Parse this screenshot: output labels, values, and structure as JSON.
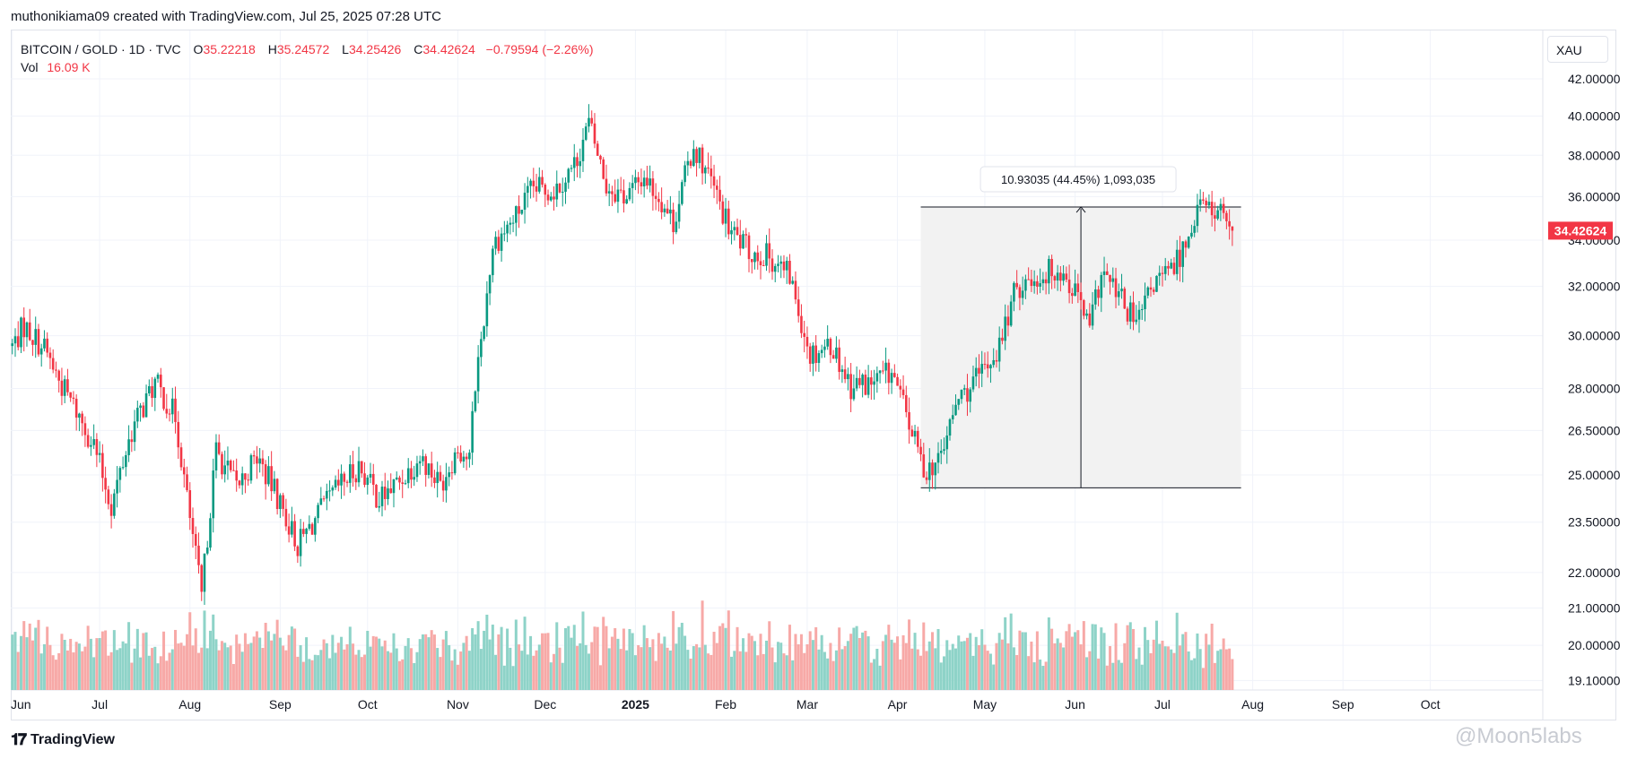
{
  "header": {
    "attribution": "muthonikiama09 created with TradingView.com, Jul 25, 2025 07:28 UTC"
  },
  "legend": {
    "symbol": "BITCOIN / GOLD · 1D · TVC",
    "open_label": "O",
    "open": "35.22218",
    "high_label": "H",
    "high": "35.24572",
    "low_label": "L",
    "low": "34.25426",
    "close_label": "C",
    "close": "34.42624",
    "change": "−0.79594 (−2.26%)",
    "vol_label": "Vol",
    "vol": "16.09 K"
  },
  "currency_button": "XAU",
  "measure_label": "10.93035 (44.45%) 1,093,035",
  "last_price_tag": "34.42624",
  "footer": {
    "brand": "TradingView",
    "watermark": "@Moon5labs"
  },
  "colors": {
    "up": "#089981",
    "down": "#f23645",
    "vol_up": "#8ed3c8",
    "vol_down": "#f7a9a7",
    "grid": "#f0f3fa",
    "range_fill": "#f2f2f2"
  },
  "chart_data": {
    "type": "candlestick",
    "symbol": "BITCOIN / GOLD",
    "interval": "1D",
    "y_scale": "log",
    "ylim": [
      19.1,
      42.0
    ],
    "y_ticks": [
      "42.00000",
      "40.00000",
      "38.00000",
      "36.00000",
      "34.00000",
      "32.00000",
      "30.00000",
      "28.00000",
      "26.50000",
      "25.00000",
      "23.50000",
      "22.00000",
      "21.00000",
      "20.00000",
      "19.10000"
    ],
    "x_ticks": [
      "Jun",
      "Jul",
      "Aug",
      "Sep",
      "Oct",
      "Nov",
      "Dec",
      "2025",
      "Feb",
      "Mar",
      "Apr",
      "May",
      "Jun",
      "Jul",
      "Aug",
      "Sep",
      "Oct"
    ],
    "x_range": [
      "2024-06-01",
      "2025-10-31"
    ],
    "price_path": [
      [
        "2024-06-01",
        29.6
      ],
      [
        "2024-06-05",
        30.4
      ],
      [
        "2024-06-12",
        29.5
      ],
      [
        "2024-06-18",
        28.1
      ],
      [
        "2024-06-24",
        27.0
      ],
      [
        "2024-06-29",
        26.0
      ],
      [
        "2024-07-05",
        24.0
      ],
      [
        "2024-07-12",
        26.5
      ],
      [
        "2024-07-20",
        28.2
      ],
      [
        "2024-07-27",
        27.0
      ],
      [
        "2024-07-31",
        24.2
      ],
      [
        "2024-08-05",
        21.3
      ],
      [
        "2024-08-10",
        25.8
      ],
      [
        "2024-08-17",
        24.6
      ],
      [
        "2024-08-24",
        25.6
      ],
      [
        "2024-08-31",
        24.3
      ],
      [
        "2024-09-07",
        22.8
      ],
      [
        "2024-09-14",
        23.7
      ],
      [
        "2024-09-21",
        24.6
      ],
      [
        "2024-09-28",
        25.3
      ],
      [
        "2024-10-05",
        24.2
      ],
      [
        "2024-10-12",
        24.8
      ],
      [
        "2024-10-19",
        25.6
      ],
      [
        "2024-10-26",
        24.7
      ],
      [
        "2024-11-01",
        25.9
      ],
      [
        "2024-11-05",
        25.5
      ],
      [
        "2024-11-07",
        28.2
      ],
      [
        "2024-11-10",
        30.7
      ],
      [
        "2024-11-13",
        33.8
      ],
      [
        "2024-11-20",
        34.9
      ],
      [
        "2024-11-27",
        36.4
      ],
      [
        "2024-12-04",
        36.3
      ],
      [
        "2024-12-11",
        37.5
      ],
      [
        "2024-12-16",
        39.6
      ],
      [
        "2024-12-22",
        36.5
      ],
      [
        "2024-12-29",
        36.0
      ],
      [
        "2025-01-04",
        37.0
      ],
      [
        "2025-01-10",
        35.8
      ],
      [
        "2025-01-14",
        34.8
      ],
      [
        "2025-01-21",
        38.5
      ],
      [
        "2025-01-27",
        36.7
      ],
      [
        "2025-02-02",
        34.5
      ],
      [
        "2025-02-09",
        33.5
      ],
      [
        "2025-02-16",
        33.3
      ],
      [
        "2025-02-23",
        32.4
      ],
      [
        "2025-03-02",
        29.3
      ],
      [
        "2025-03-09",
        29.7
      ],
      [
        "2025-03-16",
        28.1
      ],
      [
        "2025-03-23",
        28.2
      ],
      [
        "2025-03-30",
        28.6
      ],
      [
        "2025-04-06",
        26.4
      ],
      [
        "2025-04-10",
        25.2
      ],
      [
        "2025-04-15",
        25.4
      ],
      [
        "2025-04-22",
        27.6
      ],
      [
        "2025-04-29",
        28.4
      ],
      [
        "2025-05-06",
        29.6
      ],
      [
        "2025-05-12",
        32.0
      ],
      [
        "2025-05-19",
        32.4
      ],
      [
        "2025-05-26",
        32.8
      ],
      [
        "2025-06-02",
        31.6
      ],
      [
        "2025-06-06",
        30.2
      ],
      [
        "2025-06-10",
        32.6
      ],
      [
        "2025-06-16",
        31.6
      ],
      [
        "2025-06-22",
        30.4
      ],
      [
        "2025-06-28",
        32.1
      ],
      [
        "2025-07-04",
        32.6
      ],
      [
        "2025-07-10",
        34.2
      ],
      [
        "2025-07-13",
        35.6
      ],
      [
        "2025-07-18",
        35.4
      ],
      [
        "2025-07-22",
        35.2
      ],
      [
        "2025-07-25",
        34.43
      ]
    ],
    "volume_peak_k": 27,
    "last_close": 34.42624,
    "measure": {
      "from_date": "2025-04-09",
      "to_date": "2025-07-28",
      "low": 24.58,
      "high": 35.51,
      "change": "10.93035",
      "pct": "44.45%"
    }
  }
}
